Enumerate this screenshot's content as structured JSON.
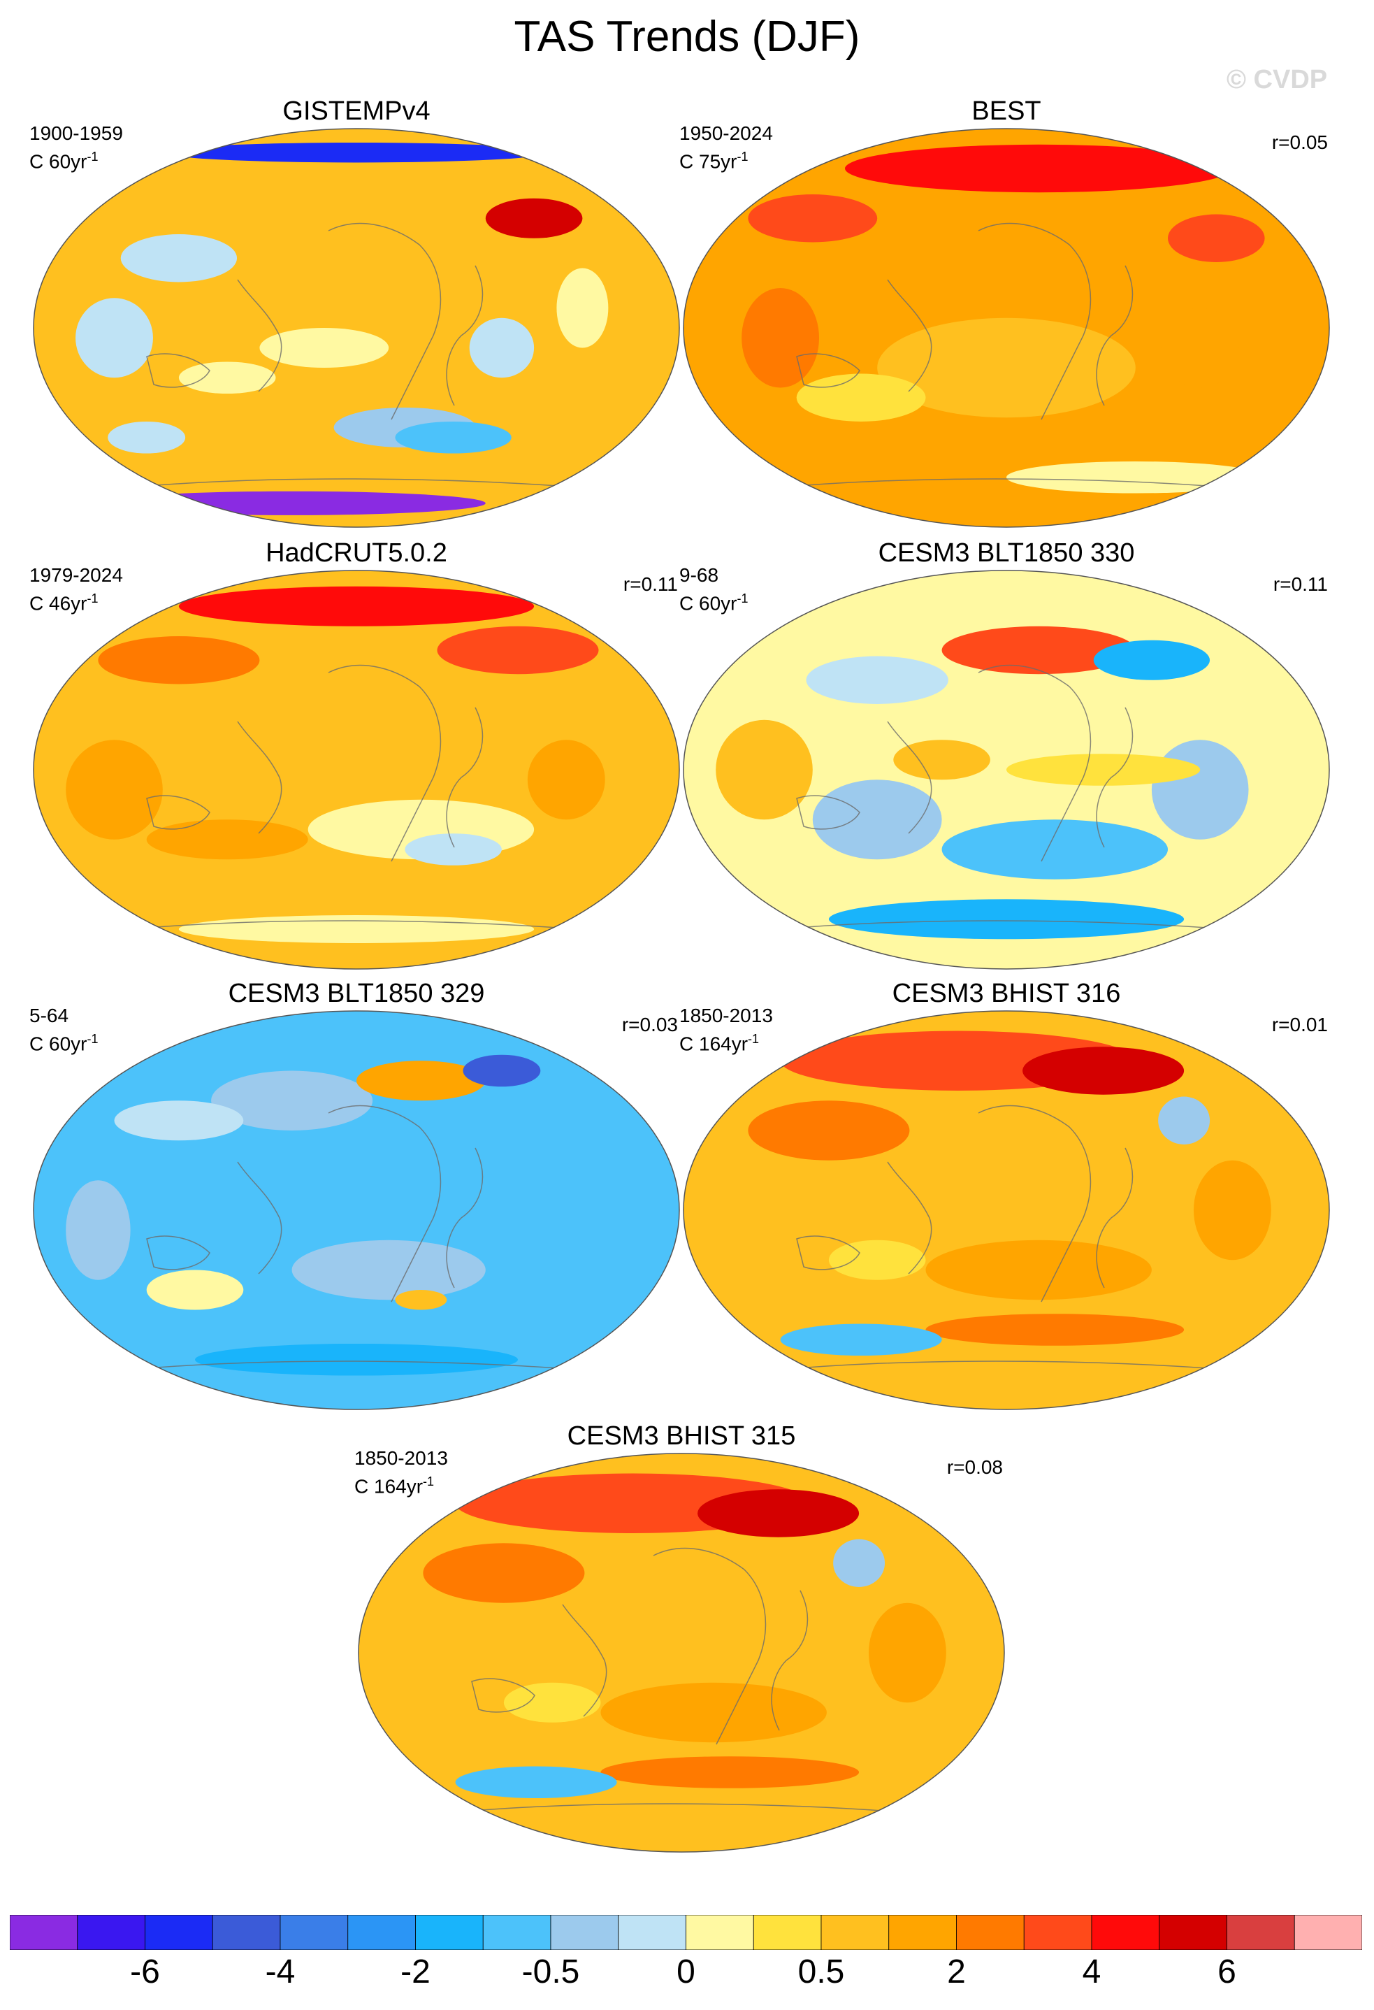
{
  "figure": {
    "title": "TAS Trends (DJF)",
    "watermark": "© CVDP"
  },
  "panels": [
    {
      "title": "GISTEMPv4",
      "period": "1900-1959",
      "rate_prefix": "C 60yr",
      "rate_exp": "-1",
      "corr": "",
      "scheme": "gistemp"
    },
    {
      "title": "BEST",
      "period": "1950-2024",
      "rate_prefix": "C 75yr",
      "rate_exp": "-1",
      "corr": "r=0.05",
      "scheme": "warm_strong"
    },
    {
      "title": "HadCRUT5.0.2",
      "period": "1979-2024",
      "rate_prefix": "C 46yr",
      "rate_exp": "-1",
      "corr": "r=0.11",
      "scheme": "warm"
    },
    {
      "title": "CESM3 BLT1850 330",
      "period": "9-68",
      "rate_prefix": "C 60yr",
      "rate_exp": "-1",
      "corr": "r=0.11",
      "scheme": "mixed"
    },
    {
      "title": "CESM3 BLT1850 329",
      "period": "5-64",
      "rate_prefix": "C 60yr",
      "rate_exp": "-1",
      "corr": "r=0.03",
      "scheme": "cool"
    },
    {
      "title": "CESM3 BHIST 316",
      "period": "1850-2013",
      "rate_prefix": "C 164yr",
      "rate_exp": "-1",
      "corr": "r=0.01",
      "scheme": "warm_hist"
    },
    {
      "title": "CESM3 BHIST 315",
      "period": "1850-2013",
      "rate_prefix": "C 164yr",
      "rate_exp": "-1",
      "corr": "r=0.08",
      "scheme": "warm_hist"
    }
  ],
  "colorbar": {
    "colors": [
      "#8a2be2",
      "#3a17f0",
      "#1b2bf5",
      "#3b5bd8",
      "#3a7ee8",
      "#2b95f5",
      "#19b4fb",
      "#4cc2fa",
      "#9ccaed",
      "#bfe3f5",
      "#fff9a2",
      "#ffe23d",
      "#ffc01f",
      "#ffa500",
      "#ff7a00",
      "#ff4a1a",
      "#ff0a0a",
      "#d40000",
      "#d93f3f",
      "#ffb0b0"
    ],
    "tick_labels": [
      "-6",
      "-4",
      "-2",
      "-0.5",
      "0",
      "0.5",
      "2",
      "4",
      "6"
    ]
  }
}
